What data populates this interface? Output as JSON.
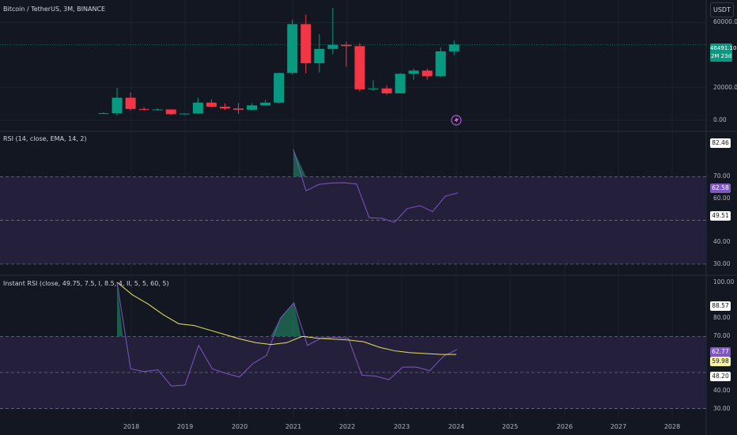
{
  "main_title": "Bitcoin / TetherUS, 3M, BINANCE",
  "currency_button": "USDT",
  "price_tag": {
    "price": "46491.10",
    "countdown": "2M 23d"
  },
  "rsi_title": "RSI (14, close, EMA, 14, 2)",
  "irsi_title": "Instant RSI (close, 49.75, 7.5, I, 8.5, 4, II, 5, 5, 60, 5)",
  "badges": {
    "rsi_max": "82.46",
    "rsi_value": "62.58",
    "rsi_ma": "49.51",
    "irsi_max": "88.57",
    "irsi_value": "62.77",
    "irsi_ma": "59.98",
    "irsi_min": "48.20"
  },
  "colors": {
    "up": "#089981",
    "down": "#f23645",
    "rsi_line": "#7e57c2",
    "ma_line": "#e8e35a",
    "band": "#241f3a",
    "background": "#131722"
  },
  "chart_data": [
    {
      "type": "candlestick",
      "title": "Bitcoin / TetherUS, 3M, BINANCE",
      "x_ticks": [
        "2018",
        "2019",
        "2020",
        "2021",
        "2022",
        "2023",
        "2024",
        "2025",
        "2026",
        "2027",
        "2028"
      ],
      "y_ticks": [
        "60000.00",
        "20000.00",
        "0.00"
      ],
      "ylim": [
        0,
        68000
      ],
      "candles": [
        {
          "o": 4300,
          "h": 4800,
          "l": 3800,
          "c": 4300
        },
        {
          "o": 4300,
          "h": 19800,
          "l": 2800,
          "c": 13800
        },
        {
          "o": 13800,
          "h": 17000,
          "l": 6000,
          "c": 6900
        },
        {
          "o": 6900,
          "h": 8000,
          "l": 5800,
          "c": 6400
        },
        {
          "o": 6400,
          "h": 7400,
          "l": 5900,
          "c": 6600
        },
        {
          "o": 6600,
          "h": 6800,
          "l": 3200,
          "c": 3700
        },
        {
          "o": 3700,
          "h": 4200,
          "l": 3300,
          "c": 4100
        },
        {
          "o": 4100,
          "h": 13800,
          "l": 4000,
          "c": 10800
        },
        {
          "o": 10800,
          "h": 12800,
          "l": 7800,
          "c": 8300
        },
        {
          "o": 8300,
          "h": 10400,
          "l": 6400,
          "c": 7200
        },
        {
          "o": 7200,
          "h": 10500,
          "l": 3800,
          "c": 6400
        },
        {
          "o": 6400,
          "h": 10400,
          "l": 6300,
          "c": 9100
        },
        {
          "o": 9100,
          "h": 12500,
          "l": 8900,
          "c": 10800
        },
        {
          "o": 10800,
          "h": 29000,
          "l": 10300,
          "c": 29000
        },
        {
          "o": 29000,
          "h": 61800,
          "l": 28000,
          "c": 59000
        },
        {
          "o": 59000,
          "h": 64800,
          "l": 28800,
          "c": 35000
        },
        {
          "o": 35000,
          "h": 52900,
          "l": 29300,
          "c": 43800
        },
        {
          "o": 43800,
          "h": 69000,
          "l": 40500,
          "c": 46300
        },
        {
          "o": 46300,
          "h": 48200,
          "l": 32900,
          "c": 45500
        },
        {
          "o": 45500,
          "h": 47400,
          "l": 17600,
          "c": 19000
        },
        {
          "o": 19000,
          "h": 24600,
          "l": 18100,
          "c": 19500
        },
        {
          "o": 19500,
          "h": 21500,
          "l": 15500,
          "c": 16500
        },
        {
          "o": 16500,
          "h": 29000,
          "l": 16500,
          "c": 28500
        },
        {
          "o": 28500,
          "h": 31800,
          "l": 24800,
          "c": 30500
        },
        {
          "o": 30500,
          "h": 31800,
          "l": 24900,
          "c": 27000
        },
        {
          "o": 27000,
          "h": 44700,
          "l": 26500,
          "c": 42300
        },
        {
          "o": 42300,
          "h": 49000,
          "l": 40000,
          "c": 46491
        }
      ]
    },
    {
      "type": "line",
      "title": "RSI (14, close, EMA, 14, 2)",
      "y_ticks": [
        "70.00",
        "60.00",
        "40.00",
        "30.00"
      ],
      "ylim": [
        26,
        90
      ],
      "bands": [
        70,
        50,
        30
      ],
      "series": [
        {
          "values": [
            82.46,
            63.5,
            66.4,
            67.1,
            67.2,
            66.6,
            51.2,
            50.9,
            49.1,
            55.4,
            56.7,
            54.0,
            61.0,
            62.58
          ]
        }
      ]
    },
    {
      "type": "line",
      "title": "Instant RSI (close, 49.75, 7.5, I, 8.5, 4, II, 5, 5, 60, 5)",
      "y_ticks": [
        "100.00",
        "80.00",
        "70.00",
        "40.00",
        "30.00"
      ],
      "ylim": [
        25,
        103
      ],
      "bands": [
        70,
        50,
        30
      ],
      "series": [
        {
          "values": [
            100.0,
            52.0,
            50.5,
            51.5,
            42.5,
            43.0,
            65.0,
            52.0,
            49.5,
            47.5,
            55.0,
            59.5,
            80.0,
            88.57,
            65.0,
            69.0,
            69.5,
            69.0,
            48.5,
            48.0,
            46.0,
            53.0,
            53.0,
            51.0,
            59.0,
            62.77
          ]
        },
        {
          "values": [
            100.0,
            93.0,
            88.0,
            82.0,
            77.0,
            76.0,
            73.5,
            71.0,
            68.5,
            66.5,
            65.5,
            66.5,
            70.0,
            69.0,
            68.5,
            68.0,
            67.0,
            64.0,
            62.0,
            61.0,
            60.5,
            60.0,
            59.98
          ]
        }
      ]
    }
  ]
}
